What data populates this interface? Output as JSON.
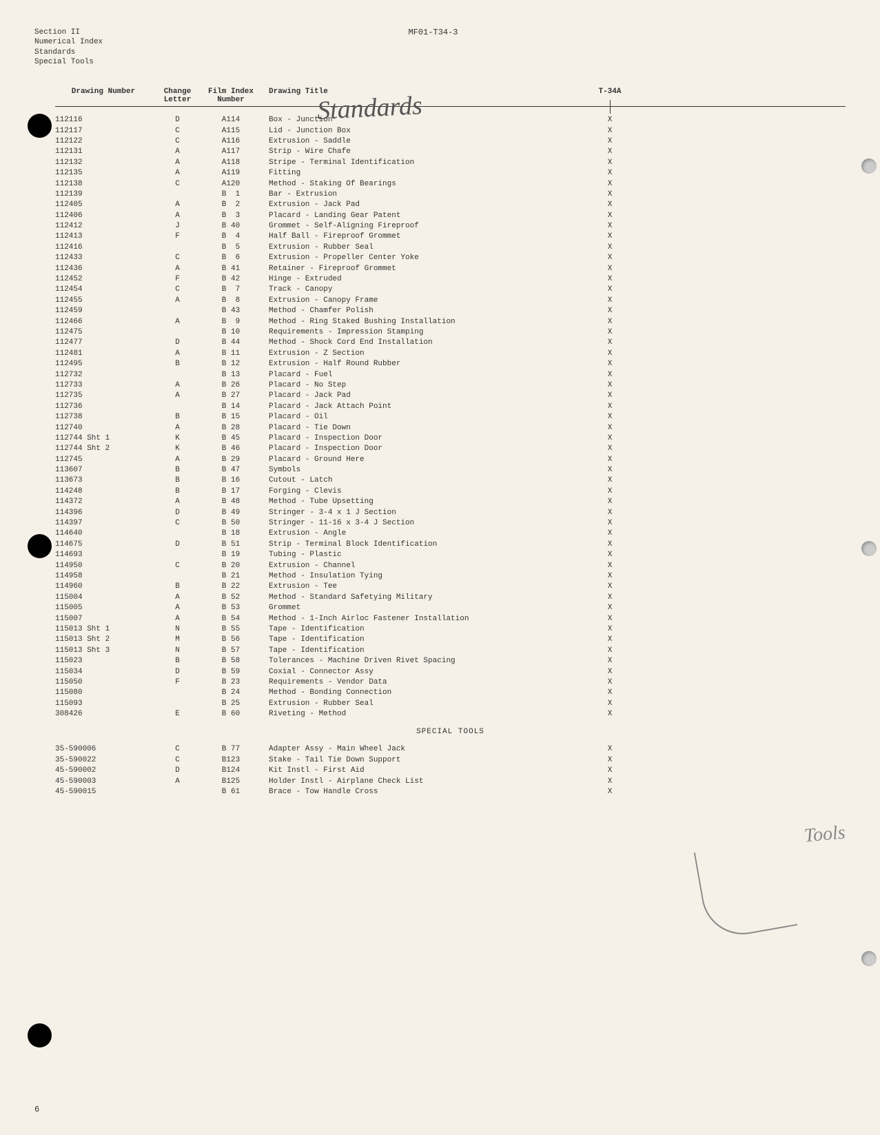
{
  "document": {
    "section": "Section II",
    "line2": "Numerical Index",
    "line3": "Standards",
    "line4": "Special Tools",
    "doc_number": "MF01-T34-3",
    "model": "T-34A",
    "page_number": "6",
    "handwritten_standards": "Standards",
    "handwritten_tools": "Tools"
  },
  "columns": {
    "drawing": "Drawing Number",
    "change": "Change Letter",
    "film": "Film Index Number",
    "title": "Drawing Title"
  },
  "section_tools": "SPECIAL TOOLS",
  "rows": [
    {
      "drawing": "112116",
      "change": "D",
      "film": "A114",
      "title": "Box - Junction",
      "t34a": "X"
    },
    {
      "drawing": "112117",
      "change": "C",
      "film": "A115",
      "title": "Lid - Junction Box",
      "t34a": "X"
    },
    {
      "drawing": "112122",
      "change": "C",
      "film": "A116",
      "title": "Extrusion - Saddle",
      "t34a": "X"
    },
    {
      "drawing": "112131",
      "change": "A",
      "film": "A117",
      "title": "Strip - Wire Chafe",
      "t34a": "X"
    },
    {
      "drawing": "112132",
      "change": "A",
      "film": "A118",
      "title": "Stripe - Terminal Identification",
      "t34a": "X"
    },
    {
      "drawing": "112135",
      "change": "A",
      "film": "A119",
      "title": "Fitting",
      "t34a": "X"
    },
    {
      "drawing": "112138",
      "change": "C",
      "film": "A120",
      "title": "Method - Staking Of Bearings",
      "t34a": "X"
    },
    {
      "drawing": "112139",
      "change": "",
      "film": "B  1",
      "title": "Bar - Extrusion",
      "t34a": "X"
    },
    {
      "drawing": "112405",
      "change": "A",
      "film": "B  2",
      "title": "Extrusion - Jack Pad",
      "t34a": "X"
    },
    {
      "drawing": "112406",
      "change": "A",
      "film": "B  3",
      "title": "Placard - Landing Gear Patent",
      "t34a": "X"
    },
    {
      "drawing": "112412",
      "change": "J",
      "film": "B 40",
      "title": "Grommet - Self-Aligning Fireproof",
      "t34a": "X"
    },
    {
      "drawing": "112413",
      "change": "F",
      "film": "B  4",
      "title": "Half Ball - Fireproof Grommet",
      "t34a": "X"
    },
    {
      "drawing": "112416",
      "change": "",
      "film": "B  5",
      "title": "Extrusion - Rubber Seal",
      "t34a": "X"
    },
    {
      "drawing": "112433",
      "change": "C",
      "film": "B  6",
      "title": "Extrusion - Propeller Center Yoke",
      "t34a": "X"
    },
    {
      "drawing": "112436",
      "change": "A",
      "film": "B 41",
      "title": "Retainer - Fireproof Grommet",
      "t34a": "X"
    },
    {
      "drawing": "112452",
      "change": "F",
      "film": "B 42",
      "title": "Hinge - Extruded",
      "t34a": "X"
    },
    {
      "drawing": "112454",
      "change": "C",
      "film": "B  7",
      "title": "Track - Canopy",
      "t34a": "X"
    },
    {
      "drawing": "112455",
      "change": "A",
      "film": "B  8",
      "title": "Extrusion - Canopy Frame",
      "t34a": "X"
    },
    {
      "drawing": "112459",
      "change": "",
      "film": "B 43",
      "title": "Method - Chamfer Polish",
      "t34a": "X"
    },
    {
      "drawing": "112466",
      "change": "A",
      "film": "B  9",
      "title": "Method - Ring Staked Bushing Installation",
      "t34a": "X"
    },
    {
      "drawing": "112475",
      "change": "",
      "film": "B 10",
      "title": "Requirements - Impression Stamping",
      "t34a": "X"
    },
    {
      "drawing": "112477",
      "change": "D",
      "film": "B 44",
      "title": "Method - Shock Cord End Installation",
      "t34a": "X"
    },
    {
      "drawing": "112481",
      "change": "A",
      "film": "B 11",
      "title": "Extrusion - Z Section",
      "t34a": "X"
    },
    {
      "drawing": "112495",
      "change": "B",
      "film": "B 12",
      "title": "Extrusion - Half Round Rubber",
      "t34a": "X"
    },
    {
      "drawing": "112732",
      "change": "",
      "film": "B 13",
      "title": "Placard - Fuel",
      "t34a": "X"
    },
    {
      "drawing": "112733",
      "change": "A",
      "film": "B 26",
      "title": "Placard - No Step",
      "t34a": "X"
    },
    {
      "drawing": "112735",
      "change": "A",
      "film": "B 27",
      "title": "Placard - Jack Pad",
      "t34a": "X"
    },
    {
      "drawing": "112736",
      "change": "",
      "film": "B 14",
      "title": "Placard - Jack Attach Point",
      "t34a": "X"
    },
    {
      "drawing": "112738",
      "change": "B",
      "film": "B 15",
      "title": "Placard - Oil",
      "t34a": "X"
    },
    {
      "drawing": "112740",
      "change": "A",
      "film": "B 28",
      "title": "Placard - Tie Down",
      "t34a": "X"
    },
    {
      "drawing": "112744 Sht 1",
      "change": "K",
      "film": "B 45",
      "title": "Placard - Inspection Door",
      "t34a": "X"
    },
    {
      "drawing": "112744 Sht 2",
      "change": "K",
      "film": "B 46",
      "title": "Placard - Inspection Door",
      "t34a": "X"
    },
    {
      "drawing": "112745",
      "change": "A",
      "film": "B 29",
      "title": "Placard - Ground Here",
      "t34a": "X"
    },
    {
      "drawing": "113607",
      "change": "B",
      "film": "B 47",
      "title": "Symbols",
      "t34a": "X"
    },
    {
      "drawing": "113673",
      "change": "B",
      "film": "B 16",
      "title": "Cutout - Latch",
      "t34a": "X"
    },
    {
      "drawing": "114248",
      "change": "B",
      "film": "B 17",
      "title": "Forging - Clevis",
      "t34a": "X"
    },
    {
      "drawing": "114372",
      "change": "A",
      "film": "B 48",
      "title": "Method - Tube Upsetting",
      "t34a": "X"
    },
    {
      "drawing": "114396",
      "change": "D",
      "film": "B 49",
      "title": "Stringer - 3-4 x 1 J Section",
      "t34a": "X"
    },
    {
      "drawing": "114397",
      "change": "C",
      "film": "B 50",
      "title": "Stringer - 11-16 x 3-4 J Section",
      "t34a": "X"
    },
    {
      "drawing": "114640",
      "change": "",
      "film": "B 18",
      "title": "Extrusion - Angle",
      "t34a": "X"
    },
    {
      "drawing": "114675",
      "change": "D",
      "film": "B 51",
      "title": "Strip - Terminal Block Identification",
      "t34a": "X"
    },
    {
      "drawing": "114693",
      "change": "",
      "film": "B 19",
      "title": "Tubing - Plastic",
      "t34a": "X"
    },
    {
      "drawing": "114950",
      "change": "C",
      "film": "B 20",
      "title": "Extrusion - Channel",
      "t34a": "X"
    },
    {
      "drawing": "114958",
      "change": "",
      "film": "B 21",
      "title": "Method - Insulation Tying",
      "t34a": "X"
    },
    {
      "drawing": "114960",
      "change": "B",
      "film": "B 22",
      "title": "Extrusion - Tee",
      "t34a": "X"
    },
    {
      "drawing": "115004",
      "change": "A",
      "film": "B 52",
      "title": "Method - Standard Safetying Military",
      "t34a": "X"
    },
    {
      "drawing": "115005",
      "change": "A",
      "film": "B 53",
      "title": "Grommet",
      "t34a": "X"
    },
    {
      "drawing": "115007",
      "change": "A",
      "film": "B 54",
      "title": "Method - 1-Inch Airloc Fastener Installation",
      "t34a": "X"
    },
    {
      "drawing": "115013 Sht 1",
      "change": "N",
      "film": "B 55",
      "title": "Tape - Identification",
      "t34a": "X"
    },
    {
      "drawing": "115013 Sht 2",
      "change": "M",
      "film": "B 56",
      "title": "Tape - Identification",
      "t34a": "X"
    },
    {
      "drawing": "115013 Sht 3",
      "change": "N",
      "film": "B 57",
      "title": "Tape - Identification",
      "t34a": "X"
    },
    {
      "drawing": "115023",
      "change": "B",
      "film": "B 58",
      "title": "Tolerances - Machine Driven Rivet Spacing",
      "t34a": "X"
    },
    {
      "drawing": "115034",
      "change": "D",
      "film": "B 59",
      "title": "Coxial - Connector Assy",
      "t34a": "X"
    },
    {
      "drawing": "115050",
      "change": "F",
      "film": "B 23",
      "title": "Requirements - Vendor Data",
      "t34a": "X"
    },
    {
      "drawing": "115080",
      "change": "",
      "film": "B 24",
      "title": "Method - Bonding Connection",
      "t34a": "X"
    },
    {
      "drawing": "115093",
      "change": "",
      "film": "B 25",
      "title": "Extrusion - Rubber Seal",
      "t34a": "X"
    },
    {
      "drawing": "308426",
      "change": "E",
      "film": "B 60",
      "title": "Riveting - Method",
      "t34a": "X"
    }
  ],
  "tools_rows": [
    {
      "drawing": "35-590006",
      "change": "C",
      "film": "B 77",
      "title": "Adapter Assy - Main Wheel Jack",
      "t34a": "X"
    },
    {
      "drawing": "35-590022",
      "change": "C",
      "film": "B123",
      "title": "Stake - Tail Tie Down Support",
      "t34a": "X"
    },
    {
      "drawing": "45-590002",
      "change": "D",
      "film": "B124",
      "title": "Kit Instl - First Aid",
      "t34a": "X"
    },
    {
      "drawing": "45-590003",
      "change": "A",
      "film": "B125",
      "title": "Holder Instl - Airplane Check List",
      "t34a": "X"
    },
    {
      "drawing": "45-590015",
      "change": "",
      "film": "B 61",
      "title": "Brace - Tow Handle Cross",
      "t34a": "X"
    }
  ]
}
